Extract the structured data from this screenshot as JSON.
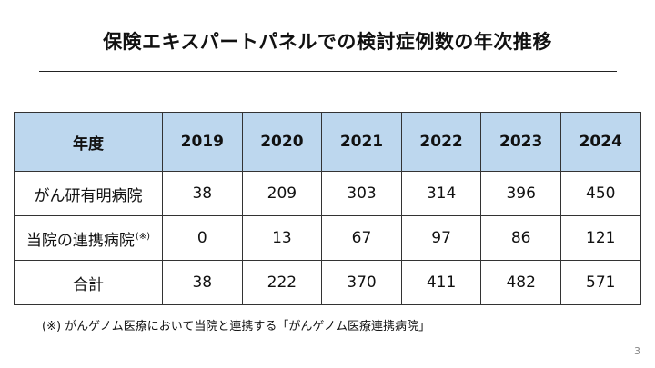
{
  "title": "保険エキスパートパネルでの検討症例数の年次推移",
  "table": {
    "header_label": "年度",
    "years": [
      "2019",
      "2020",
      "2021",
      "2022",
      "2023",
      "2024"
    ],
    "rows": [
      {
        "label": "がん研有明病院",
        "note": "",
        "values": [
          "38",
          "209",
          "303",
          "314",
          "396",
          "450"
        ]
      },
      {
        "label": "当院の連携病院",
        "note": "(※)",
        "values": [
          "0",
          "13",
          "67",
          "97",
          "86",
          "121"
        ]
      },
      {
        "label": "合計",
        "note": "",
        "values": [
          "38",
          "222",
          "370",
          "411",
          "482",
          "571"
        ]
      }
    ]
  },
  "footnote": "(※) がんゲノム医療において当院と連携する「がんゲノム医療連携病院」",
  "page_number": "3",
  "colors": {
    "header_fill": "#bdd7ee",
    "border": "#333333"
  }
}
